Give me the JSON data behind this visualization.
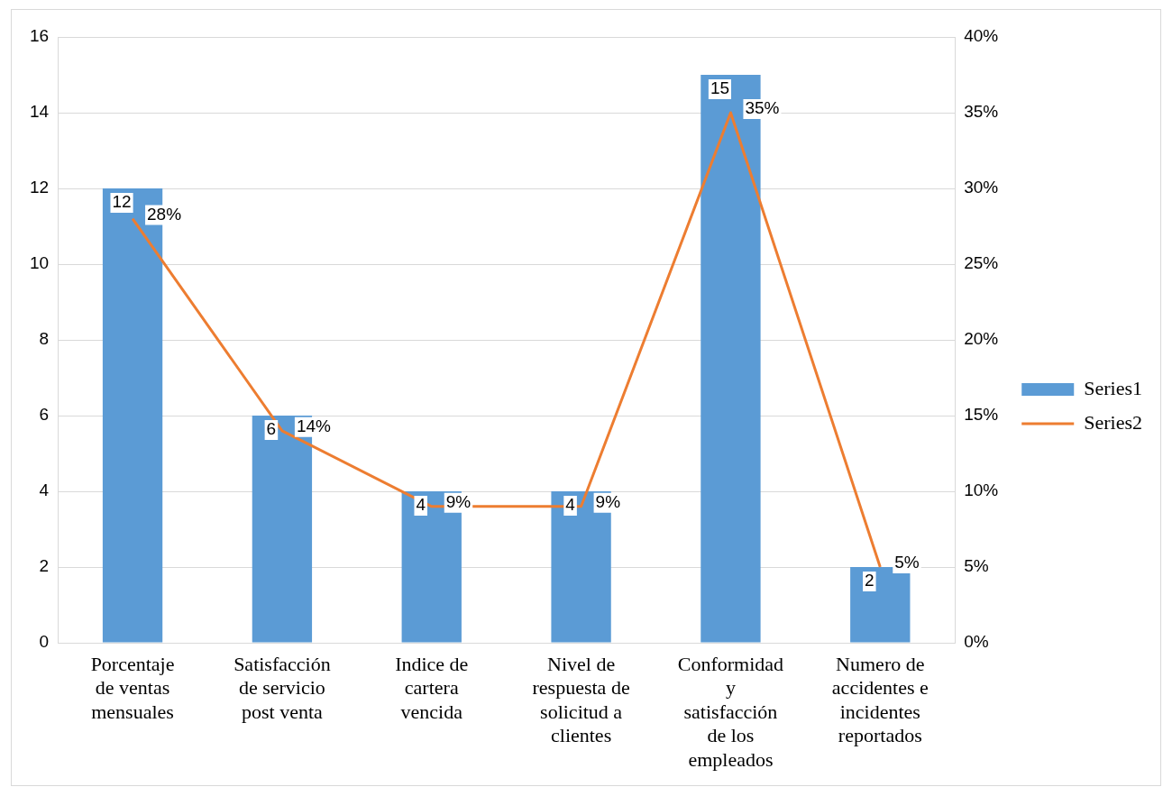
{
  "chart_data": {
    "type": "bar",
    "categories": [
      "Porcentaje de ventas mensuales",
      "Satisfacción de servicio post venta",
      "Indice de cartera vencida",
      "Nivel de respuesta de solicitud a clientes",
      "Conformidad y satisfacción de los empleados",
      "Numero de accidentes e incidentes reportados"
    ],
    "series": [
      {
        "name": "Series1",
        "color": "#5b9bd5",
        "values": [
          12,
          6,
          4,
          4,
          15,
          2
        ],
        "value_labels": [
          "12",
          "6",
          "4",
          "4",
          "15",
          "2"
        ]
      },
      {
        "name": "Series2",
        "type": "line",
        "axis": "y2",
        "color": "#ed7d31",
        "values": [
          28,
          14,
          9,
          9,
          35,
          5
        ],
        "value_labels": [
          "28%",
          "14%",
          "9%",
          "9%",
          "35%",
          "5%"
        ]
      }
    ],
    "ylim": [
      0,
      16
    ],
    "yticks": [
      0,
      2,
      4,
      6,
      8,
      10,
      12,
      14,
      16
    ],
    "y2lim": [
      0,
      40
    ],
    "y2ticks": [
      {
        "value": 0,
        "label": "0%"
      },
      {
        "value": 5,
        "label": "5%"
      },
      {
        "value": 10,
        "label": "10%"
      },
      {
        "value": 15,
        "label": "15%"
      },
      {
        "value": 20,
        "label": "20%"
      },
      {
        "value": 25,
        "label": "25%"
      },
      {
        "value": 30,
        "label": "30%"
      },
      {
        "value": 35,
        "label": "35%"
      },
      {
        "value": 40,
        "label": "40%"
      }
    ],
    "grid": "y",
    "legend": "right",
    "line_style": "solid"
  }
}
